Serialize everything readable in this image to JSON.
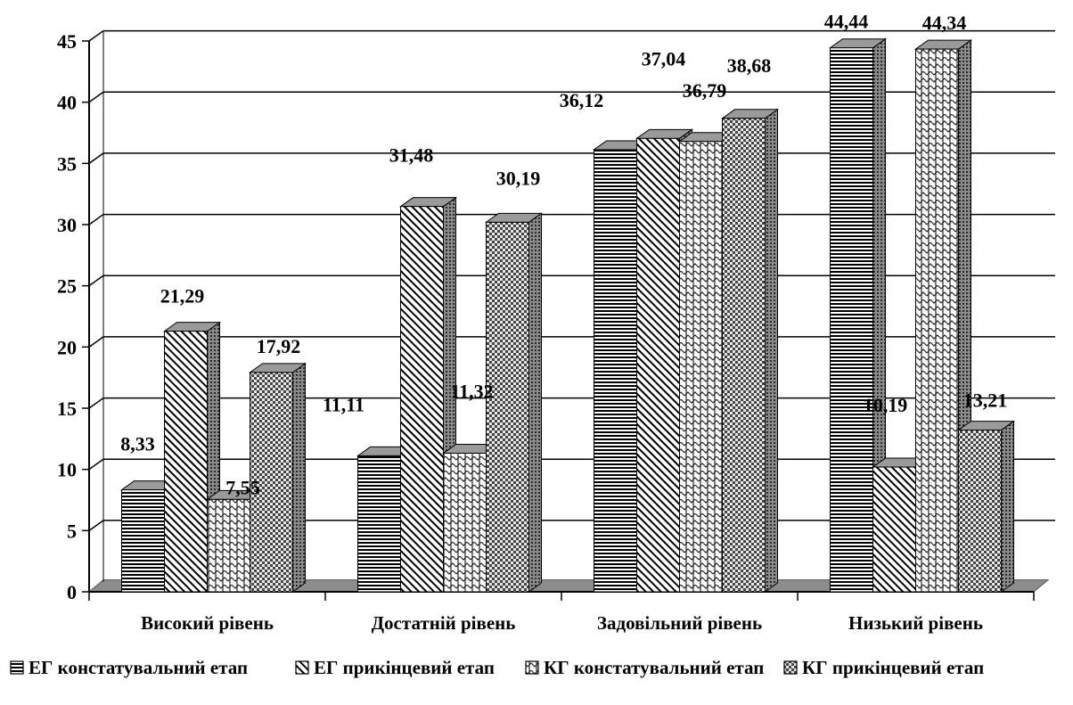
{
  "chart_data": {
    "type": "bar",
    "style": "3d-clustered-column",
    "categories": [
      "Високий рівень",
      "Достатній рівень",
      "Задовільний рівень",
      "Низький рівень"
    ],
    "series": [
      {
        "name": "ЕГ констатувальний етап",
        "values": [
          8.33,
          11.11,
          36.12,
          44.44
        ],
        "labels": [
          "8,33",
          "11,11",
          "36,12",
          "44,44"
        ],
        "pattern": "horizontal-lines"
      },
      {
        "name": "ЕГ прикінцевий етап",
        "values": [
          21.29,
          31.48,
          37.04,
          10.19
        ],
        "labels": [
          "21,29",
          "31,48",
          "37,04",
          "10,19"
        ],
        "pattern": "diagonal-lines"
      },
      {
        "name": "КГ констатувальний етап",
        "values": [
          7.55,
          11.32,
          36.79,
          44.34
        ],
        "labels": [
          "7,55",
          "11,32",
          "36,79",
          "44,34"
        ],
        "pattern": "zigzag"
      },
      {
        "name": "КГ прикінцевий етап",
        "values": [
          17.92,
          30.19,
          38.68,
          13.21
        ],
        "labels": [
          "17,92",
          "30,19",
          "38,68",
          "13,21"
        ],
        "pattern": "checker"
      }
    ],
    "y_ticks": [
      "0",
      "5",
      "10",
      "15",
      "20",
      "25",
      "30",
      "35",
      "40",
      "45"
    ],
    "ylim": [
      0,
      45
    ],
    "grid": true,
    "legend_position": "bottom",
    "title": "",
    "xlabel": "",
    "ylabel": ""
  }
}
